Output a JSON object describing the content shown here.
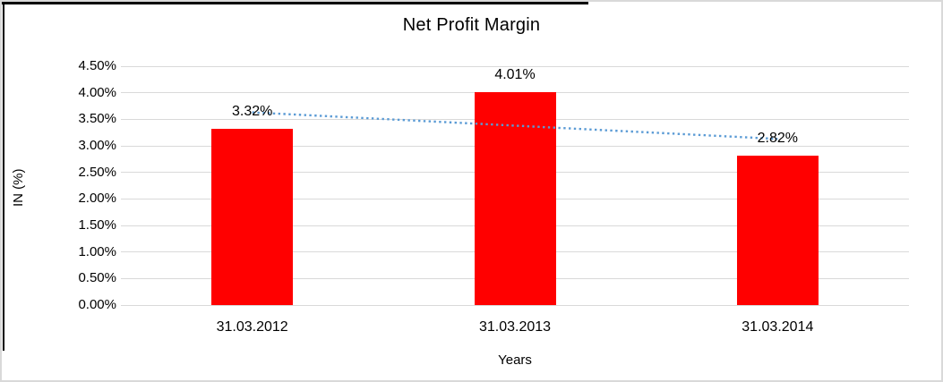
{
  "frame": {
    "background": "#ffffff",
    "outer_border_color": "#d9d9d9",
    "partial_edge_color": "#000000"
  },
  "chart_data": {
    "type": "bar",
    "title": "Net Profit Margin",
    "xlabel": "Years",
    "ylabel": "IN (%)",
    "categories": [
      "31.03.2012",
      "31.03.2013",
      "31.03.2014"
    ],
    "values": [
      3.32,
      4.01,
      2.82
    ],
    "data_labels": [
      "3.32%",
      "4.01%",
      "2.82%"
    ],
    "ylim": [
      0,
      4.5
    ],
    "ytick_step": 0.5,
    "ytick_labels": [
      "0.00%",
      "0.50%",
      "1.00%",
      "1.50%",
      "2.00%",
      "2.50%",
      "3.00%",
      "3.50%",
      "4.00%",
      "4.50%"
    ],
    "grid": true,
    "legend": "none",
    "bar_color": "#ff0000",
    "gridline_color": "#d9d9d9",
    "text_color": "#000000",
    "trendline": {
      "type": "linear",
      "style": "dotted",
      "color": "#5b9bd5",
      "values": [
        3.63,
        3.38,
        3.13
      ]
    }
  }
}
